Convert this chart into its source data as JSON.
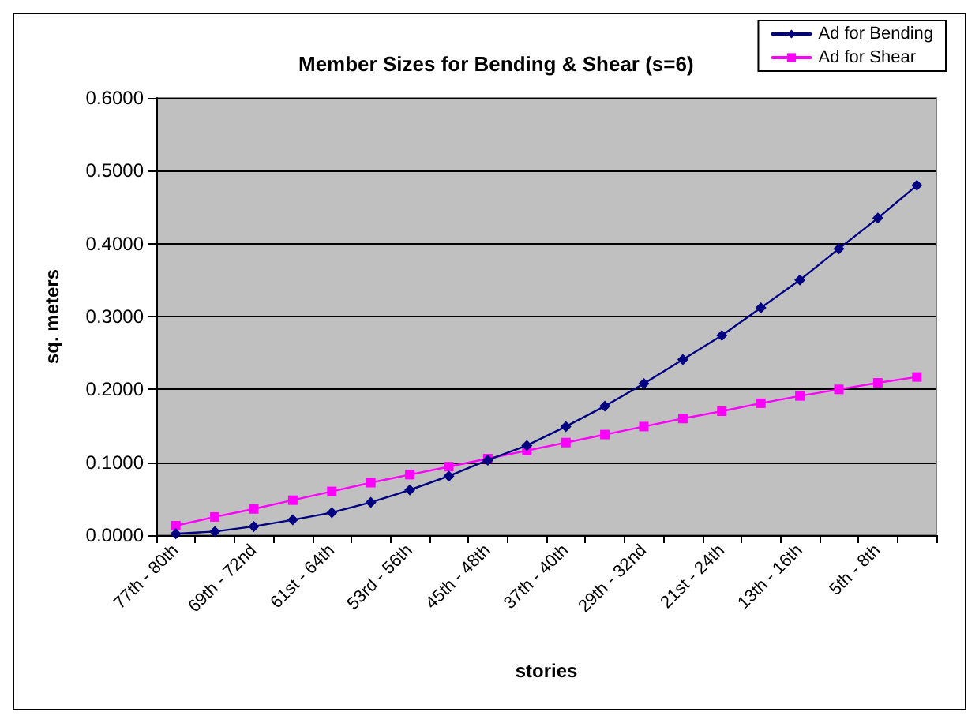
{
  "chart_data": {
    "type": "line",
    "title": "Member Sizes for Bending & Shear (s=6)",
    "xlabel": "stories",
    "ylabel": "sq. meters",
    "categories": [
      "77th - 80th",
      null,
      "69th - 72nd",
      null,
      "61st - 64th",
      null,
      "53rd - 56th",
      null,
      "45th - 48th",
      null,
      "37th - 40th",
      null,
      "29th - 32nd",
      null,
      "21st - 24th",
      null,
      "13th - 16th",
      null,
      "5th - 8th",
      null
    ],
    "series": [
      {
        "name": "Ad for Bending",
        "color": "#000080",
        "marker": "diamond",
        "values": [
          0.002,
          0.005,
          0.012,
          0.021,
          0.031,
          0.045,
          0.062,
          0.081,
          0.103,
          0.123,
          0.149,
          0.177,
          0.208,
          0.241,
          0.274,
          0.312,
          0.35,
          0.393,
          0.435,
          0.48
        ]
      },
      {
        "name": "Ad for Shear",
        "color": "#ff00ff",
        "marker": "square",
        "values": [
          0.013,
          0.025,
          0.036,
          0.048,
          0.06,
          0.072,
          0.083,
          0.094,
          0.105,
          0.116,
          0.127,
          0.138,
          0.149,
          0.16,
          0.17,
          0.181,
          0.191,
          0.2,
          0.209,
          0.217
        ]
      }
    ],
    "ylim": [
      0,
      0.6
    ],
    "yticks": [
      {
        "value": 0,
        "label": "0.0000"
      },
      {
        "value": 0.1,
        "label": "0.1000"
      },
      {
        "value": 0.2,
        "label": "0.2000"
      },
      {
        "value": 0.3,
        "label": "0.3000"
      },
      {
        "value": 0.4,
        "label": "0.4000"
      },
      {
        "value": 0.5,
        "label": "0.5000"
      },
      {
        "value": 0.6,
        "label": "0.6000"
      }
    ],
    "grid": "y",
    "legend": "top right",
    "line_style": "solid"
  }
}
